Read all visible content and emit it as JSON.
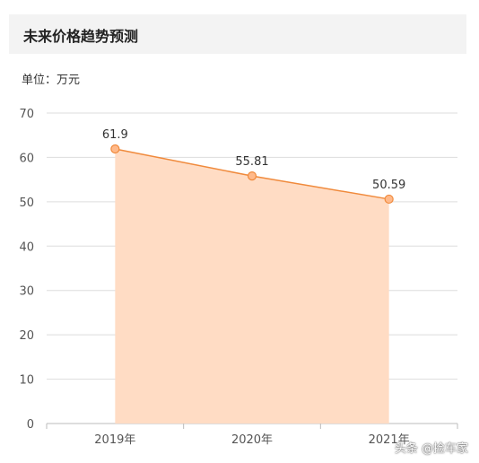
{
  "page_title": "未来价格趋势预测",
  "unit_label": "单位：万元",
  "watermark": "头条 @捡车家",
  "colors": {
    "line": "#f08a3c",
    "fill": "#ffdcc4",
    "point": "#ffb98a",
    "grid": "#dddddd"
  },
  "chart_data": {
    "type": "area",
    "title": "未来价格趋势预测",
    "unit": "万元",
    "categories": [
      "2019年",
      "2020年",
      "2021年"
    ],
    "series": [
      {
        "values": [
          61.9,
          55.81,
          50.59
        ]
      }
    ],
    "value_labels": [
      "61.9",
      "55.81",
      "50.59"
    ],
    "ylim": [
      0,
      70
    ],
    "yticks": [
      0,
      10,
      20,
      30,
      40,
      50,
      60,
      70
    ],
    "grid": true
  }
}
